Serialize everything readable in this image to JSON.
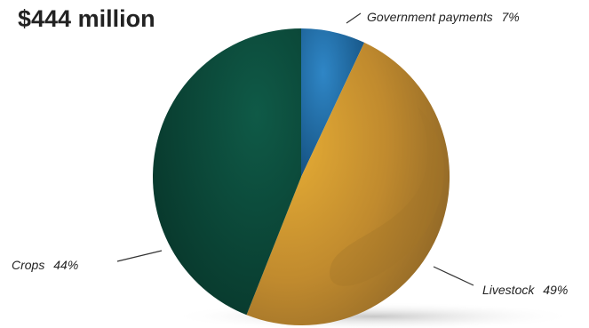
{
  "chart_data": {
    "type": "pie",
    "title": "$444 million",
    "slices": [
      {
        "label": "Government payments",
        "value": 7,
        "value_label": "7%",
        "color": "#1f6aa5"
      },
      {
        "label": "Livestock",
        "value": 49,
        "value_label": "49%",
        "color": "#c8952e"
      },
      {
        "label": "Crops",
        "value": 44,
        "value_label": "44%",
        "color": "#0d4a3a"
      }
    ]
  }
}
